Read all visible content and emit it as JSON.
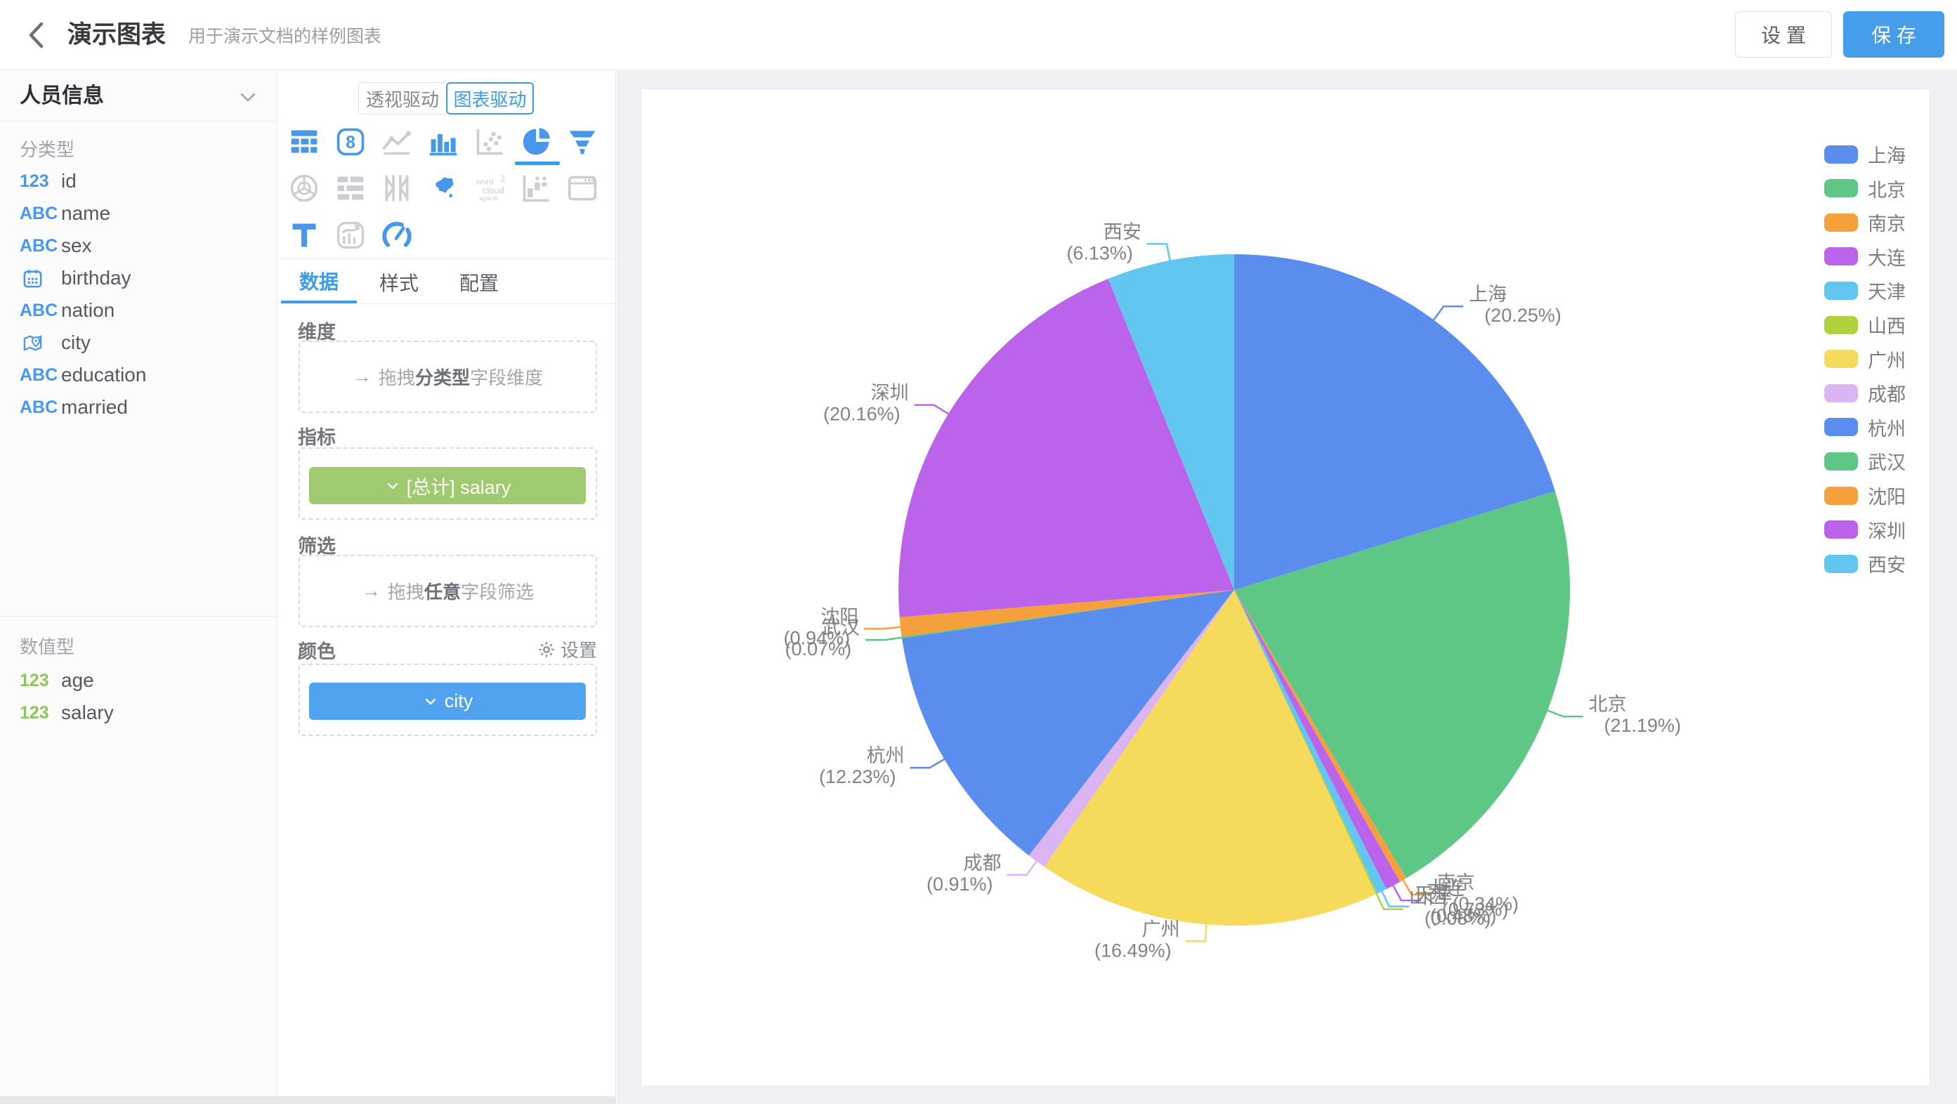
{
  "header": {
    "title": "演示图表",
    "subtitle": "用于演示文档的样例图表",
    "settings_label": "设 置",
    "save_label": "保 存"
  },
  "sidebar": {
    "dataset_name": "人员信息",
    "category_section": {
      "label": "分类型",
      "fields": [
        {
          "type": "number",
          "name": "id"
        },
        {
          "type": "text",
          "name": "name"
        },
        {
          "type": "text",
          "name": "sex"
        },
        {
          "type": "date",
          "name": "birthday"
        },
        {
          "type": "text",
          "name": "nation"
        },
        {
          "type": "location",
          "name": "city"
        },
        {
          "type": "text",
          "name": "education"
        },
        {
          "type": "text",
          "name": "married"
        }
      ]
    },
    "numeric_section": {
      "label": "数值型",
      "fields": [
        {
          "type": "number",
          "name": "age"
        },
        {
          "type": "number",
          "name": "salary"
        }
      ]
    }
  },
  "panel": {
    "mode_toggle": {
      "options": [
        "透视驱动",
        "图表驱动"
      ],
      "active": "图表驱动"
    },
    "chart_types": {
      "rows": [
        [
          {
            "name": "table",
            "state": "on"
          },
          {
            "name": "kpi-card",
            "state": "on"
          },
          {
            "name": "line-chart",
            "state": "off"
          },
          {
            "name": "bar-chart",
            "state": "on"
          },
          {
            "name": "scatter-chart",
            "state": "off"
          },
          {
            "name": "pie-chart",
            "state": "selected"
          },
          {
            "name": "funnel-chart",
            "state": "on"
          }
        ],
        [
          {
            "name": "radar-chart",
            "state": "off"
          },
          {
            "name": "gantt-chart",
            "state": "off"
          },
          {
            "name": "frame-chart",
            "state": "off"
          },
          {
            "name": "china-map",
            "state": "on"
          },
          {
            "name": "word-cloud",
            "state": "off"
          },
          {
            "name": "waterfall-chart",
            "state": "off"
          },
          {
            "name": "iframe-block",
            "state": "off"
          }
        ],
        [
          {
            "name": "text-block",
            "state": "on"
          },
          {
            "name": "mixed-chart",
            "state": "off"
          },
          {
            "name": "gauge-chart",
            "state": "on"
          }
        ]
      ]
    },
    "tabs": {
      "items": [
        "数据",
        "样式",
        "配置"
      ],
      "active": "数据"
    },
    "sections": {
      "dimension": {
        "label": "维度",
        "placeholder_prefix": "拖拽",
        "placeholder_strong": "分类型",
        "placeholder_suffix": "字段维度"
      },
      "measure": {
        "label": "指标",
        "pill": "[总计] salary",
        "pill_color": "#A0CA6F"
      },
      "filter": {
        "label": "筛选",
        "placeholder_prefix": "拖拽",
        "placeholder_strong": "任意",
        "placeholder_suffix": "字段筛选"
      },
      "color": {
        "label": "颜色",
        "settings_label": "设置",
        "pill": "city",
        "pill_color": "#52A3EF"
      }
    }
  },
  "chart_data": {
    "type": "pie",
    "measure": "[总计] salary",
    "color_dimension": "city",
    "value_unit": "percent",
    "start_angle": "top",
    "direction": "clockwise",
    "legend_position": "right",
    "label_format": "{name} ({value}%)",
    "palette": [
      "#5B8DEE",
      "#5FC786",
      "#F5A03D",
      "#BB63EA",
      "#62C6F0",
      "#AFD33C",
      "#F6DA5C",
      "#DBB4F3"
    ],
    "slices": [
      {
        "name": "上海",
        "value": 20.25
      },
      {
        "name": "北京",
        "value": 21.19
      },
      {
        "name": "南京",
        "value": 0.34
      },
      {
        "name": "大连",
        "value": 0.73
      },
      {
        "name": "天津",
        "value": 0.48
      },
      {
        "name": "山西",
        "value": 0.08
      },
      {
        "name": "广州",
        "value": 16.49
      },
      {
        "name": "成都",
        "value": 0.91
      },
      {
        "name": "杭州",
        "value": 12.23
      },
      {
        "name": "武汉",
        "value": 0.07
      },
      {
        "name": "沈阳",
        "value": 0.94
      },
      {
        "name": "深圳",
        "value": 20.16
      },
      {
        "name": "西安",
        "value": 6.13
      }
    ]
  }
}
